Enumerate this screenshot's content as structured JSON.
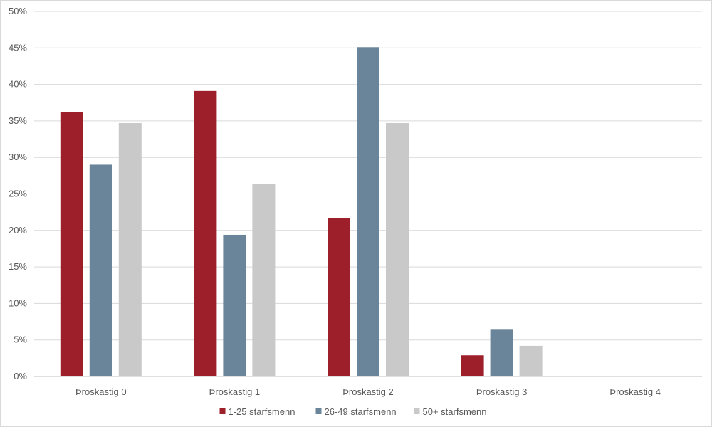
{
  "chart_data": {
    "type": "bar",
    "categories": [
      "Þroskastig 0",
      "Þroskastig 1",
      "Þroskastig 2",
      "Þroskastig 3",
      "Þroskastig 4"
    ],
    "series": [
      {
        "name": "1-25 starfsmenn",
        "color": "#9c1f2a",
        "values": [
          36.2,
          39.1,
          21.7,
          2.9,
          0
        ]
      },
      {
        "name": "26-49 starfsmenn",
        "color": "#6a8499",
        "values": [
          29.0,
          19.4,
          45.1,
          6.5,
          0
        ]
      },
      {
        "name": "50+ starfsmenn",
        "color": "#c9c9c9",
        "values": [
          34.7,
          26.4,
          34.7,
          4.2,
          0
        ]
      }
    ],
    "ylim": [
      0,
      50
    ],
    "yticks": [
      "0%",
      "5%",
      "10%",
      "15%",
      "20%",
      "25%",
      "30%",
      "35%",
      "40%",
      "45%",
      "50%"
    ],
    "ytick_values": [
      0,
      5,
      10,
      15,
      20,
      25,
      30,
      35,
      40,
      45,
      50
    ],
    "grid": true,
    "legend_position": "bottom"
  }
}
